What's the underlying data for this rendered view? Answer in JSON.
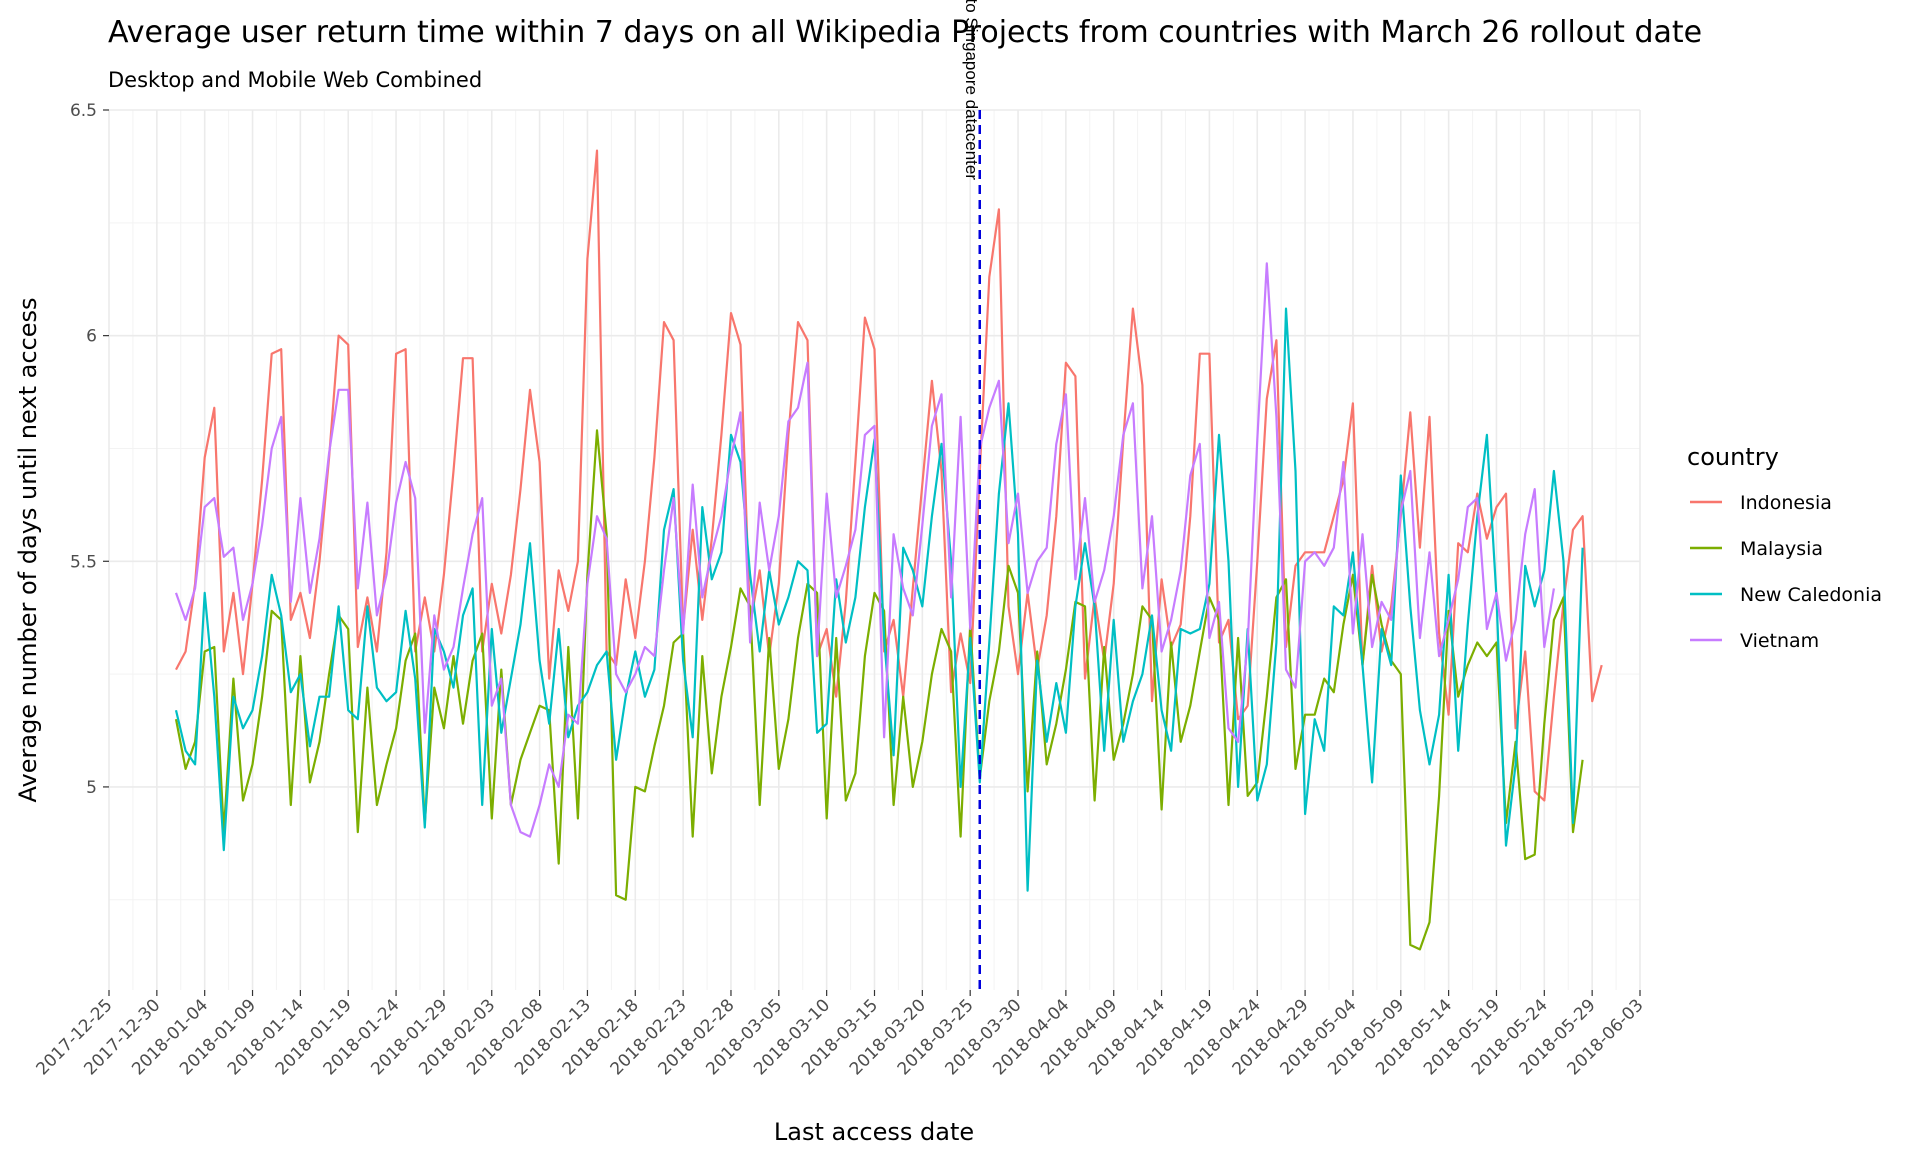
{
  "chart_data": {
    "type": "line",
    "title": "Average user return time within 7 days on all Wikipedia Projects from countries with March 26 rollout date",
    "subtitle": "Desktop and Mobile Web Combined",
    "xlabel": "Last access date",
    "ylabel": "Average number of days until next access",
    "xlim": [
      "2017-12-25",
      "2018-06-03"
    ],
    "ylim": [
      4.55,
      6.5
    ],
    "x_ticks": [
      "2017-12-25",
      "2017-12-30",
      "2018-01-04",
      "2018-01-09",
      "2018-01-14",
      "2018-01-19",
      "2018-01-24",
      "2018-01-29",
      "2018-02-03",
      "2018-02-08",
      "2018-02-13",
      "2018-02-18",
      "2018-02-23",
      "2018-02-28",
      "2018-03-05",
      "2018-03-10",
      "2018-03-15",
      "2018-03-20",
      "2018-03-25",
      "2018-03-30",
      "2018-04-04",
      "2018-04-09",
      "2018-04-14",
      "2018-04-19",
      "2018-04-24",
      "2018-04-29",
      "2018-05-04",
      "2018-05-09",
      "2018-05-14",
      "2018-05-19",
      "2018-05-24",
      "2018-05-29",
      "2018-06-03"
    ],
    "y_ticks": [
      "5",
      "5.5",
      "6",
      "6.5"
    ],
    "grid": true,
    "legend": {
      "title": "country",
      "position": "right"
    },
    "annotation": {
      "text": "switch to Singapore datacenter",
      "x": "2018-03-26",
      "line_color": "#0000dd"
    },
    "x_start": "2018-01-01",
    "series": [
      {
        "name": "Indonesia",
        "color": "#F8766D",
        "values": [
          5.26,
          5.3,
          5.45,
          5.73,
          5.84,
          5.3,
          5.43,
          5.25,
          5.45,
          5.68,
          5.96,
          5.97,
          5.37,
          5.43,
          5.33,
          5.5,
          5.73,
          6.0,
          5.98,
          5.31,
          5.42,
          5.3,
          5.52,
          5.96,
          5.97,
          5.3,
          5.42,
          5.3,
          5.47,
          5.7,
          5.95,
          5.95,
          5.3,
          5.45,
          5.34,
          5.47,
          5.66,
          5.88,
          5.72,
          5.24,
          5.48,
          5.39,
          5.5,
          6.17,
          6.41,
          5.3,
          5.27,
          5.46,
          5.33,
          5.5,
          5.73,
          6.03,
          5.99,
          5.35,
          5.57,
          5.37,
          5.55,
          5.78,
          6.05,
          5.98,
          5.36,
          5.48,
          5.29,
          5.45,
          5.78,
          6.03,
          5.99,
          5.29,
          5.35,
          5.2,
          5.41,
          5.72,
          6.04,
          5.97,
          5.3,
          5.37,
          5.2,
          5.44,
          5.67,
          5.9,
          5.7,
          5.21,
          5.34,
          5.23,
          5.7,
          6.13,
          6.28,
          5.4,
          5.25,
          5.43,
          5.26,
          5.38,
          5.6,
          5.94,
          5.91,
          5.24,
          5.42,
          5.28,
          5.45,
          5.77,
          6.06,
          5.89,
          5.19,
          5.46,
          5.31,
          5.36,
          5.6,
          5.96,
          5.96,
          5.32,
          5.37,
          5.15,
          5.18,
          5.5,
          5.86,
          5.99,
          5.31,
          5.49,
          5.52,
          5.52,
          5.52,
          5.6,
          5.68,
          5.85,
          5.27,
          5.49,
          5.3,
          5.4,
          5.6,
          5.83,
          5.53,
          5.82,
          5.34,
          5.16,
          5.54,
          5.52,
          5.65,
          5.55,
          5.62,
          5.65,
          5.13,
          5.3,
          4.99,
          4.97,
          5.2,
          5.41,
          5.57,
          5.6,
          5.19,
          5.27
        ]
      },
      {
        "name": "Malaysia",
        "color": "#7CAE00",
        "values": [
          5.15,
          5.04,
          5.1,
          5.3,
          5.31,
          4.9,
          5.24,
          4.97,
          5.05,
          5.2,
          5.39,
          5.37,
          4.96,
          5.29,
          5.01,
          5.1,
          5.25,
          5.38,
          5.35,
          4.9,
          5.22,
          4.96,
          5.05,
          5.13,
          5.28,
          5.34,
          4.92,
          5.22,
          5.13,
          5.29,
          5.14,
          5.28,
          5.34,
          4.93,
          5.26,
          4.96,
          5.06,
          5.12,
          5.18,
          5.17,
          4.83,
          5.31,
          4.93,
          5.47,
          5.79,
          5.56,
          4.76,
          4.75,
          5.0,
          4.99,
          5.09,
          5.18,
          5.32,
          5.34,
          4.89,
          5.29,
          5.03,
          5.2,
          5.31,
          5.44,
          5.4,
          4.96,
          5.33,
          5.04,
          5.15,
          5.33,
          5.45,
          5.43,
          4.93,
          5.33,
          4.97,
          5.03,
          5.29,
          5.43,
          5.39,
          4.96,
          5.2,
          5.0,
          5.1,
          5.25,
          5.35,
          5.3,
          4.89,
          5.36,
          5.02,
          5.19,
          5.3,
          5.49,
          5.43,
          4.99,
          5.3,
          5.05,
          5.14,
          5.26,
          5.41,
          5.4,
          4.97,
          5.31,
          5.06,
          5.14,
          5.25,
          5.4,
          5.37,
          4.95,
          5.32,
          5.1,
          5.18,
          5.3,
          5.42,
          5.37,
          4.96,
          5.33,
          4.98,
          5.01,
          5.2,
          5.42,
          5.46,
          5.04,
          5.16,
          5.16,
          5.24,
          5.21,
          5.36,
          5.47,
          5.27,
          5.47,
          5.36,
          5.28,
          5.25,
          4.65,
          4.64,
          4.7,
          4.98,
          5.39,
          5.2,
          5.27,
          5.32,
          5.29,
          5.32,
          4.92,
          5.1,
          4.84,
          4.85,
          5.14,
          5.37,
          5.42,
          4.9,
          5.06
        ]
      },
      {
        "name": "New Caledonia",
        "color": "#00BFC4",
        "values": [
          5.17,
          5.08,
          5.05,
          5.43,
          5.2,
          4.86,
          5.2,
          5.13,
          5.17,
          5.29,
          5.47,
          5.38,
          5.21,
          5.25,
          5.09,
          5.2,
          5.2,
          5.4,
          5.17,
          5.15,
          5.4,
          5.22,
          5.19,
          5.21,
          5.39,
          5.24,
          4.91,
          5.35,
          5.3,
          5.22,
          5.38,
          5.44,
          4.96,
          5.35,
          5.12,
          5.24,
          5.36,
          5.54,
          5.28,
          5.14,
          5.35,
          5.11,
          5.18,
          5.21,
          5.27,
          5.3,
          5.06,
          5.2,
          5.3,
          5.2,
          5.26,
          5.57,
          5.66,
          5.28,
          5.11,
          5.62,
          5.46,
          5.52,
          5.78,
          5.72,
          5.47,
          5.3,
          5.48,
          5.36,
          5.42,
          5.5,
          5.48,
          5.12,
          5.14,
          5.46,
          5.32,
          5.42,
          5.62,
          5.77,
          5.33,
          5.07,
          5.53,
          5.48,
          5.4,
          5.6,
          5.76,
          5.5,
          5.0,
          5.33,
          5.01,
          5.32,
          5.65,
          5.85,
          5.56,
          4.77,
          5.28,
          5.1,
          5.23,
          5.12,
          5.4,
          5.54,
          5.4,
          5.08,
          5.37,
          5.1,
          5.19,
          5.25,
          5.38,
          5.17,
          5.08,
          5.35,
          5.34,
          5.35,
          5.45,
          5.78,
          5.5,
          5.0,
          5.35,
          4.97,
          5.05,
          5.32,
          6.06,
          5.7,
          4.94,
          5.15,
          5.08,
          5.4,
          5.38,
          5.52,
          5.27,
          5.01,
          5.35,
          5.27,
          5.69,
          5.4,
          5.17,
          5.05,
          5.16,
          5.47,
          5.08,
          5.36,
          5.6,
          5.78,
          5.42,
          4.87,
          5.05,
          5.49,
          5.4,
          5.48,
          5.7,
          5.5,
          4.92,
          5.53
        ]
      },
      {
        "name": "Vietnam",
        "color": "#C77CFF",
        "values": [
          5.43,
          5.37,
          5.44,
          5.62,
          5.64,
          5.51,
          5.53,
          5.37,
          5.45,
          5.58,
          5.75,
          5.82,
          5.41,
          5.64,
          5.43,
          5.55,
          5.74,
          5.88,
          5.88,
          5.44,
          5.63,
          5.38,
          5.47,
          5.63,
          5.72,
          5.64,
          5.12,
          5.38,
          5.26,
          5.31,
          5.44,
          5.56,
          5.64,
          5.18,
          5.24,
          4.96,
          4.9,
          4.89,
          4.96,
          5.05,
          5.0,
          5.16,
          5.14,
          5.45,
          5.6,
          5.55,
          5.25,
          5.21,
          5.25,
          5.31,
          5.29,
          5.48,
          5.64,
          5.34,
          5.67,
          5.42,
          5.52,
          5.6,
          5.73,
          5.83,
          5.32,
          5.63,
          5.48,
          5.6,
          5.81,
          5.84,
          5.94,
          5.29,
          5.65,
          5.42,
          5.49,
          5.57,
          5.78,
          5.8,
          5.11,
          5.56,
          5.44,
          5.38,
          5.58,
          5.8,
          5.87,
          5.42,
          5.82,
          5.35,
          5.75,
          5.84,
          5.9,
          5.54,
          5.65,
          5.43,
          5.5,
          5.53,
          5.76,
          5.87,
          5.46,
          5.64,
          5.41,
          5.48,
          5.6,
          5.78,
          5.85,
          5.44,
          5.6,
          5.3,
          5.37,
          5.48,
          5.69,
          5.76,
          5.33,
          5.41,
          5.13,
          5.1,
          5.32,
          5.77,
          6.16,
          5.82,
          5.26,
          5.22,
          5.5,
          5.52,
          5.49,
          5.53,
          5.72,
          5.34,
          5.56,
          5.31,
          5.41,
          5.37,
          5.61,
          5.7,
          5.33,
          5.52,
          5.29,
          5.37,
          5.46,
          5.62,
          5.64,
          5.35,
          5.43,
          5.28,
          5.37,
          5.56,
          5.66,
          5.31,
          5.44
        ]
      }
    ]
  }
}
